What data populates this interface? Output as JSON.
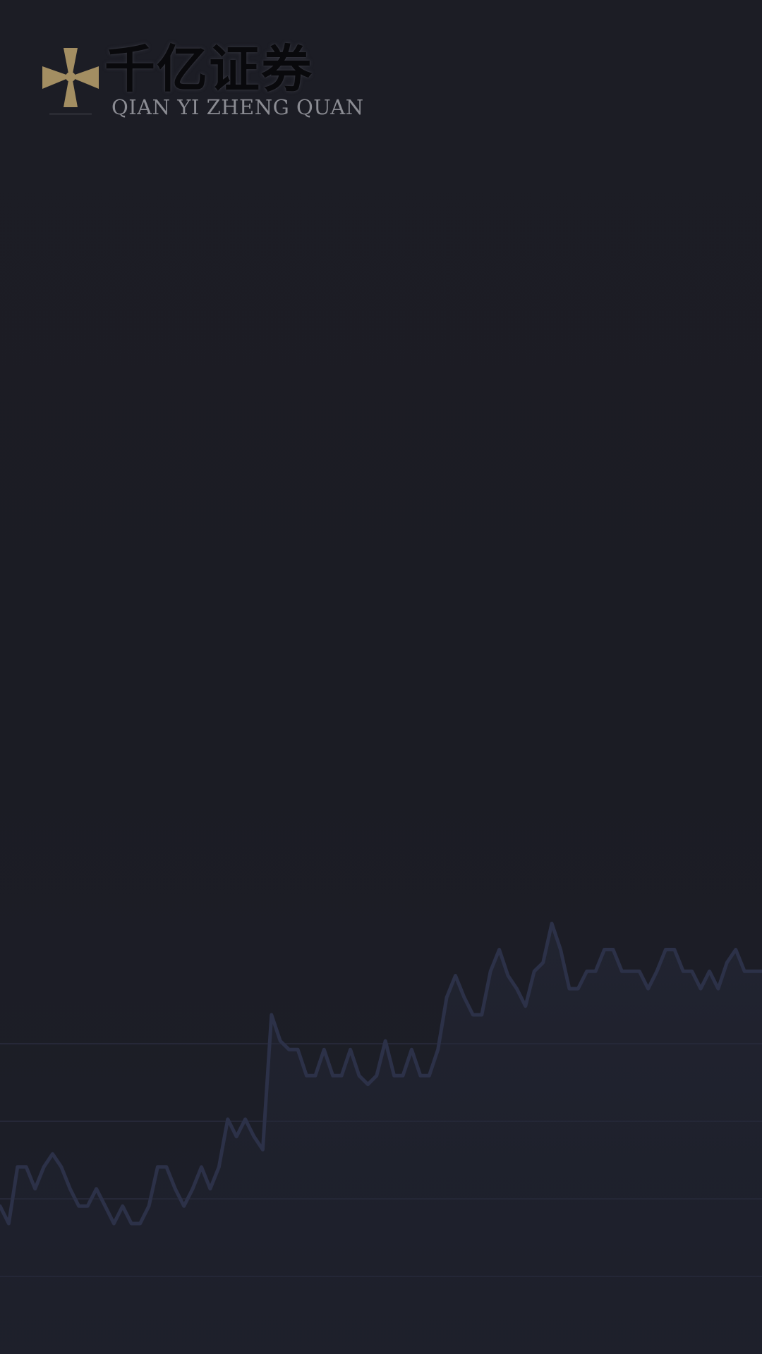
{
  "logo": {
    "name_cn": "千亿证券",
    "name_en": "QIAN YI ZHENG QUAN",
    "icon": "gold-cross-emblem-icon",
    "accent_color": "#a38e62"
  },
  "background": {
    "color": "#1b1c24",
    "chart_line_color": "#2c3148",
    "chart_data": {
      "type": "line",
      "x": [
        0,
        1,
        2,
        3,
        4,
        5,
        6,
        7,
        8,
        9,
        10,
        11,
        12,
        13,
        14,
        15,
        16,
        17,
        18,
        19,
        20,
        21,
        22,
        23,
        24,
        25,
        26,
        27,
        28,
        29,
        30,
        31,
        32,
        33,
        34,
        35,
        36,
        37,
        38,
        39,
        40,
        41,
        42,
        43,
        44,
        45,
        46,
        47,
        48,
        49,
        50,
        51,
        52,
        53,
        54,
        55,
        56,
        57,
        58,
        59,
        60,
        61,
        62,
        63,
        64,
        65,
        66,
        67,
        68,
        69,
        70,
        71,
        72,
        73,
        74,
        75,
        76,
        77,
        78,
        79,
        80,
        81,
        82,
        83,
        84,
        85,
        86,
        87
      ],
      "values": [
        3.4,
        3.0,
        4.3,
        4.3,
        3.8,
        4.3,
        4.6,
        4.3,
        3.8,
        3.4,
        3.4,
        3.8,
        3.4,
        3.0,
        3.4,
        3.0,
        3.0,
        3.4,
        4.3,
        4.3,
        3.8,
        3.4,
        3.8,
        4.3,
        3.8,
        4.3,
        5.4,
        5.0,
        5.4,
        5.0,
        4.7,
        7.8,
        7.2,
        7.0,
        7.0,
        6.4,
        6.4,
        7.0,
        6.4,
        6.4,
        7.0,
        6.4,
        6.2,
        6.4,
        7.2,
        6.4,
        6.4,
        7.0,
        6.4,
        6.4,
        7.0,
        8.2,
        8.7,
        8.2,
        7.8,
        7.8,
        8.8,
        9.3,
        8.7,
        8.4,
        8.0,
        8.8,
        9.0,
        9.9,
        9.3,
        8.4,
        8.4,
        8.8,
        8.8,
        9.3,
        9.3,
        8.8,
        8.8,
        8.8,
        8.4,
        8.8,
        9.3,
        9.3,
        8.8,
        8.8,
        8.4,
        8.8,
        8.4,
        9.0,
        9.3,
        8.8,
        8.8,
        8.8
      ],
      "ylim": [
        0,
        12
      ]
    }
  }
}
